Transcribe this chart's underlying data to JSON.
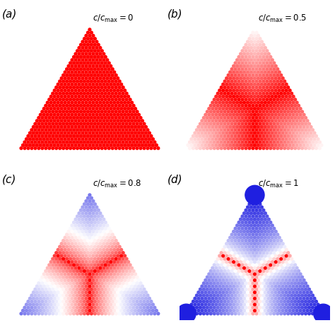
{
  "panels": [
    {
      "label": "a",
      "c_ratio": 0.0
    },
    {
      "label": "b",
      "c_ratio": 0.5
    },
    {
      "label": "c",
      "c_ratio": 0.8
    },
    {
      "label": "d",
      "c_ratio": 1.0
    }
  ],
  "titles": [
    "c/c_{max} = 0",
    "c/c_{max} = 0.5",
    "c/c_{max} = 0.8",
    "c/c_{max} = 1"
  ],
  "n_rows": 40,
  "bg_color": "#ffffff",
  "label_fontsize": 11,
  "title_fontsize": 8.5,
  "red": [
    1.0,
    0.0,
    0.0
  ],
  "blue": [
    0.12,
    0.12,
    0.88
  ],
  "white": [
    1.0,
    1.0,
    1.0
  ]
}
